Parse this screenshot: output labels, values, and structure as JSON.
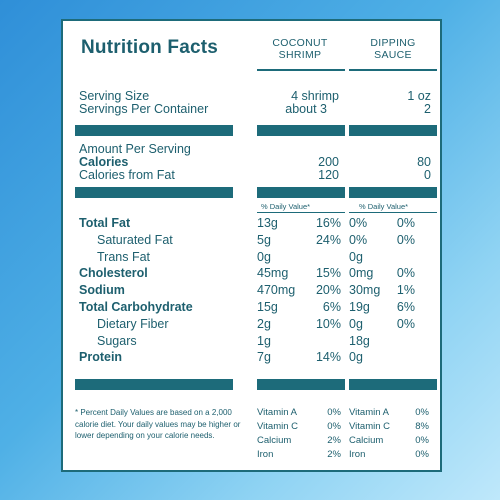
{
  "title": "Nutrition Facts",
  "columns": {
    "shrimp": [
      "COCONUT",
      "SHRIMP"
    ],
    "sauce": [
      "DIPPING",
      "SAUCE"
    ]
  },
  "serving": {
    "size_label": "Serving Size",
    "size_shrimp": "4 shrimp",
    "size_sauce": "1 oz",
    "per_container_label": "Servings Per Container",
    "per_container_shrimp": "about 3",
    "per_container_sauce": "2"
  },
  "calories": {
    "amount_label": "Amount Per Serving",
    "calories_label": "Calories",
    "calories_shrimp": "200",
    "calories_sauce": "80",
    "fat_cal_label": "Calories from Fat",
    "fat_cal_shrimp": "120",
    "fat_cal_sauce": "0"
  },
  "daily_value_header": "% Daily Value*",
  "nutrients": [
    {
      "label": "Total Fat",
      "bold": true,
      "indent": false,
      "s_amt": "13g",
      "s_dv": "16%",
      "d_amt": "0%",
      "d_dv": "0%"
    },
    {
      "label": "Saturated Fat",
      "bold": false,
      "indent": true,
      "s_amt": "5g",
      "s_dv": "24%",
      "d_amt": "0%",
      "d_dv": "0%"
    },
    {
      "label": "Trans Fat",
      "bold": false,
      "indent": true,
      "s_amt": "0g",
      "s_dv": "",
      "d_amt": "0g",
      "d_dv": ""
    },
    {
      "label": "Cholesterol",
      "bold": true,
      "indent": false,
      "s_amt": "45mg",
      "s_dv": "15%",
      "d_amt": "0mg",
      "d_dv": "0%"
    },
    {
      "label": "Sodium",
      "bold": true,
      "indent": false,
      "s_amt": "470mg",
      "s_dv": "20%",
      "d_amt": "30mg",
      "d_dv": "1%"
    },
    {
      "label": "Total Carbohydrate",
      "bold": true,
      "indent": false,
      "s_amt": "15g",
      "s_dv": "6%",
      "d_amt": "19g",
      "d_dv": "6%"
    },
    {
      "label": "Dietary Fiber",
      "bold": false,
      "indent": true,
      "s_amt": "2g",
      "s_dv": "10%",
      "d_amt": "0g",
      "d_dv": "0%"
    },
    {
      "label": "Sugars",
      "bold": false,
      "indent": true,
      "s_amt": "1g",
      "s_dv": "",
      "d_amt": "18g",
      "d_dv": ""
    },
    {
      "label": "Protein",
      "bold": true,
      "indent": false,
      "s_amt": "7g",
      "s_dv": "14%",
      "d_amt": "0g",
      "d_dv": ""
    }
  ],
  "footnote": "* Percent Daily Values are based on a 2,000 calorie diet. Your daily values may be higher or lower depending on your calorie needs.",
  "vitamins": {
    "shrimp": [
      {
        "name": "Vitamin A",
        "value": "0%"
      },
      {
        "name": "Vitamin C",
        "value": "0%"
      },
      {
        "name": "Calcium",
        "value": "2%"
      },
      {
        "name": "Iron",
        "value": "2%"
      }
    ],
    "sauce": [
      {
        "name": "Vitamin A",
        "value": "0%"
      },
      {
        "name": "Vitamin C",
        "value": "8%"
      },
      {
        "name": "Calcium",
        "value": "0%"
      },
      {
        "name": "Iron",
        "value": "0%"
      }
    ]
  },
  "colors": {
    "text": "#1d5f6e",
    "rule": "#1d6b7a",
    "background": "#4fb0e6"
  }
}
